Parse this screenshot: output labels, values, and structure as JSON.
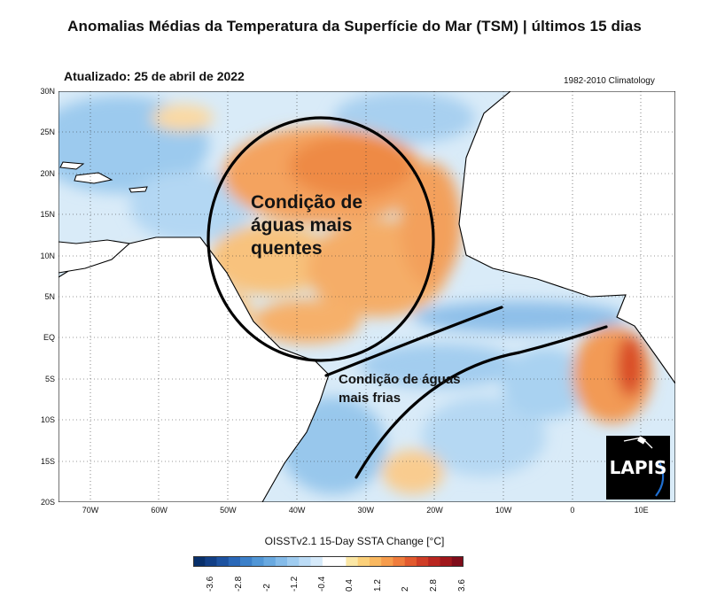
{
  "title": "Anomalias Médias da Temperatura da Superfície do Mar  (TSM) | últimos 15 dias",
  "updated": "Atualizado: 25 de abril de 2022",
  "climatology": "1982-2010 Climatology",
  "colors": {
    "warm": "#f6a25a",
    "cold": "#9cc9ec",
    "land": "#ffffff",
    "coast": "#000000"
  },
  "lat_labels": [
    "30N",
    "25N",
    "20N",
    "15N",
    "10N",
    "5N",
    "EQ",
    "5S",
    "10S",
    "15S",
    "20S"
  ],
  "lon_labels": [
    "70W",
    "60W",
    "50W",
    "40W",
    "30W",
    "20W",
    "10W",
    "0",
    "10E"
  ],
  "annotations": {
    "warm": [
      "Condição de",
      "águas mais",
      "quentes"
    ],
    "cold": [
      "Condição de águas",
      "mais frias"
    ]
  },
  "logo": {
    "text": "LAPIS"
  },
  "colorbar": {
    "title": "OISSTv2.1 15-Day SSTA Change [°C]",
    "labels": [
      "-3.6",
      "-2.8",
      "-2",
      "-1.2",
      "-0.4",
      "0.4",
      "1.2",
      "2",
      "2.8",
      "3.6"
    ],
    "colors": [
      "#08306b",
      "#123f86",
      "#1d52a0",
      "#2a68b8",
      "#3c80c9",
      "#5196d6",
      "#69a9e0",
      "#84bbe9",
      "#9fccf0",
      "#bcdcf6",
      "#d6eafa",
      "#ffffff",
      "#ffffff",
      "#fbe7a5",
      "#fbd07a",
      "#f9b860",
      "#f69c4c",
      "#ef7c3c",
      "#e25a2e",
      "#cf3d26",
      "#b92620",
      "#a0171b",
      "#7f0d1a"
    ]
  }
}
